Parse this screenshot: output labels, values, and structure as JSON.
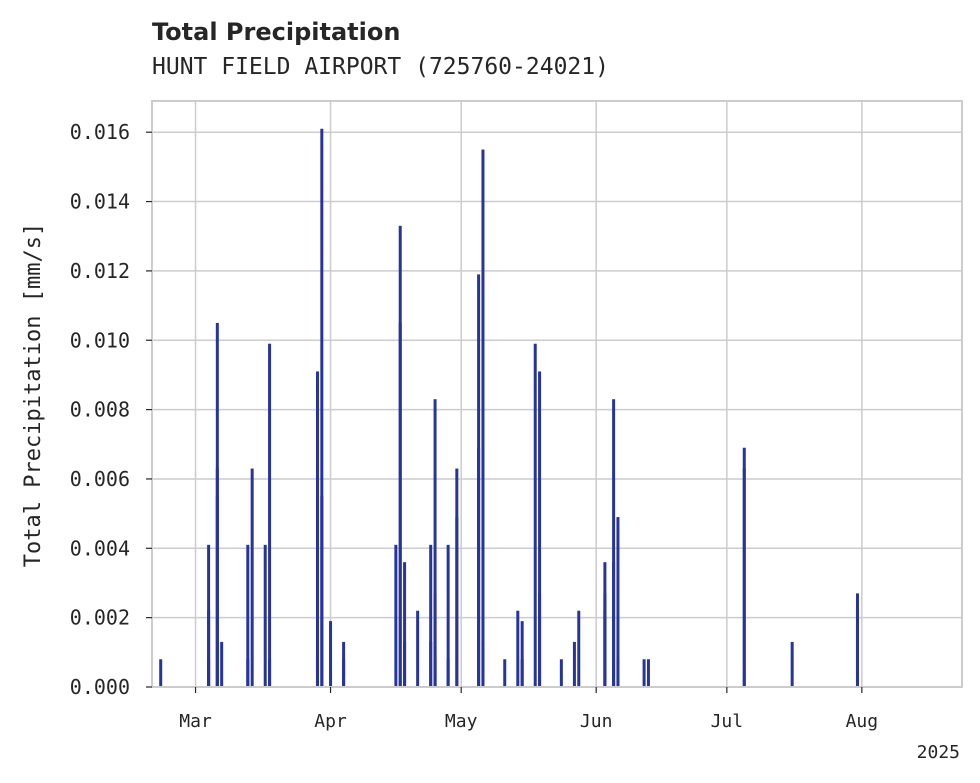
{
  "chart_data": {
    "type": "bar",
    "title": "Total Precipitation",
    "subtitle": "HUNT FIELD AIRPORT (725760-24021)",
    "xlabel": "",
    "ylabel": "Total Precipitation [mm/s]",
    "ylim": [
      0,
      0.0169
    ],
    "xlim": [
      "2025-02-19",
      "2025-08-24"
    ],
    "grid": true,
    "color": "#27349a",
    "y_ticks": [
      "0.000",
      "0.002",
      "0.004",
      "0.006",
      "0.008",
      "0.010",
      "0.012",
      "0.014",
      "0.016"
    ],
    "x_ticks": [
      {
        "date": "2025-03-01",
        "label": "Mar"
      },
      {
        "date": "2025-04-01",
        "label": "Apr"
      },
      {
        "date": "2025-05-01",
        "label": "May"
      },
      {
        "date": "2025-06-01",
        "label": "Jun"
      },
      {
        "date": "2025-07-01",
        "label": "Jul"
      },
      {
        "date": "2025-08-01",
        "label": "Aug"
      }
    ],
    "x_offset_label": "2025",
    "series": [
      {
        "points": [
          [
            "2025-02-21",
            0.0008
          ],
          [
            "2025-03-04",
            0.0008
          ],
          [
            "2025-03-04",
            0.0022
          ],
          [
            "2025-03-04",
            0.0041
          ],
          [
            "2025-03-06",
            0.0055
          ],
          [
            "2025-03-06",
            0.0063
          ],
          [
            "2025-03-06",
            0.0105
          ],
          [
            "2025-03-07",
            0.0013
          ],
          [
            "2025-03-13",
            0.0008
          ],
          [
            "2025-03-13",
            0.0041
          ],
          [
            "2025-03-14",
            0.0063
          ],
          [
            "2025-03-17",
            0.0041
          ],
          [
            "2025-03-18",
            0.0099
          ],
          [
            "2025-03-18",
            0.0008
          ],
          [
            "2025-03-29",
            0.0008
          ],
          [
            "2025-03-29",
            0.0091
          ],
          [
            "2025-03-30",
            0.0161
          ],
          [
            "2025-03-30",
            0.0055
          ],
          [
            "2025-04-01",
            0.0019
          ],
          [
            "2025-04-04",
            0.0008
          ],
          [
            "2025-04-04",
            0.0013
          ],
          [
            "2025-04-16",
            0.0041
          ],
          [
            "2025-04-17",
            0.0133
          ],
          [
            "2025-04-17",
            0.0105
          ],
          [
            "2025-04-18",
            0.0036
          ],
          [
            "2025-04-18",
            0.0013
          ],
          [
            "2025-04-21",
            0.0022
          ],
          [
            "2025-04-24",
            0.0013
          ],
          [
            "2025-04-24",
            0.0041
          ],
          [
            "2025-04-25",
            0.0083
          ],
          [
            "2025-04-25",
            0.0027
          ],
          [
            "2025-04-25",
            0.0008
          ],
          [
            "2025-04-28",
            0.0041
          ],
          [
            "2025-04-28",
            0.0008
          ],
          [
            "2025-04-30",
            0.0049
          ],
          [
            "2025-04-30",
            0.0063
          ],
          [
            "2025-05-05",
            0.0069
          ],
          [
            "2025-05-05",
            0.0119
          ],
          [
            "2025-05-06",
            0.0155
          ],
          [
            "2025-05-06",
            0.0013
          ],
          [
            "2025-05-11",
            0.0008
          ],
          [
            "2025-05-14",
            0.0022
          ],
          [
            "2025-05-15",
            0.0008
          ],
          [
            "2025-05-15",
            0.0019
          ],
          [
            "2025-05-18",
            0.0099
          ],
          [
            "2025-05-19",
            0.0091
          ],
          [
            "2025-05-19",
            0.0027
          ],
          [
            "2025-05-24",
            0.0008
          ],
          [
            "2025-05-27",
            0.0013
          ],
          [
            "2025-05-28",
            0.0022
          ],
          [
            "2025-06-03",
            0.0022
          ],
          [
            "2025-06-03",
            0.0027
          ],
          [
            "2025-06-03",
            0.0036
          ],
          [
            "2025-06-05",
            0.0036
          ],
          [
            "2025-06-05",
            0.0083
          ],
          [
            "2025-06-06",
            0.0049
          ],
          [
            "2025-06-06",
            0.0008
          ],
          [
            "2025-06-12",
            0.0008
          ],
          [
            "2025-06-13",
            0.0008
          ],
          [
            "2025-07-05",
            0.0063
          ],
          [
            "2025-07-05",
            0.0069
          ],
          [
            "2025-07-16",
            0.0013
          ],
          [
            "2025-07-31",
            0.0022
          ],
          [
            "2025-07-31",
            0.0027
          ]
        ]
      }
    ]
  }
}
